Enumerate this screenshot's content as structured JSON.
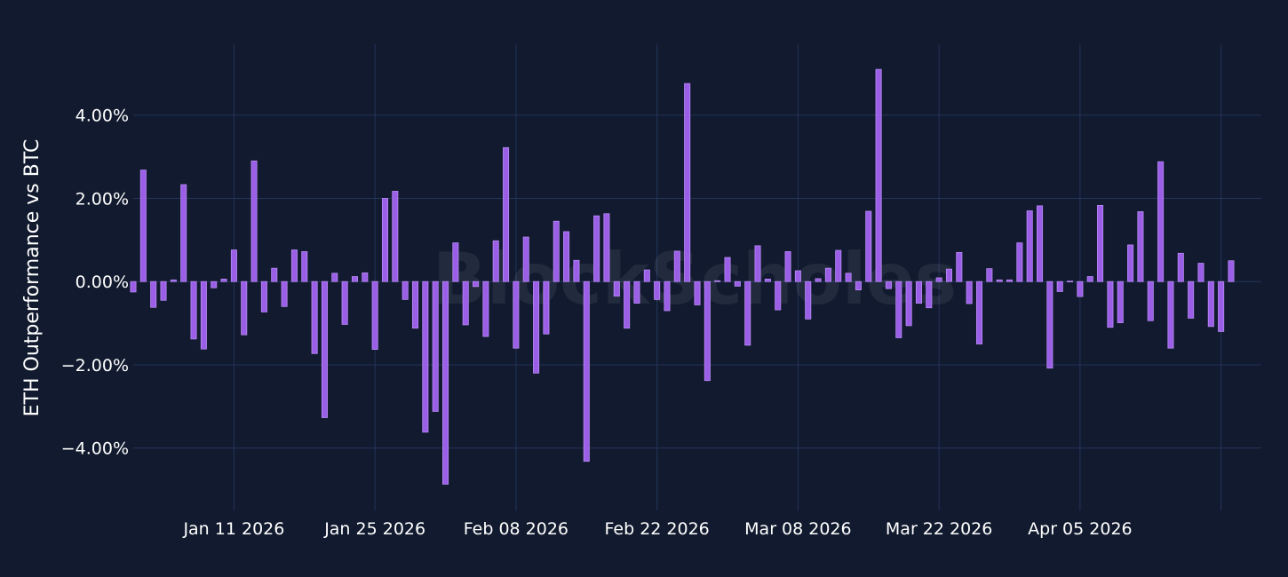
{
  "watermark": "BlockScholes",
  "chart_data": {
    "type": "bar",
    "ylabel": "ETH Outperformance vs BTC",
    "xlabel": "",
    "ylim": [
      -5.5,
      5.7
    ],
    "yticks": [
      -4,
      -2,
      0,
      2,
      4
    ],
    "ytick_labels": [
      "−4.00%",
      "−2.00%",
      "0.00%",
      "2.00%",
      "4.00%"
    ],
    "xlim": [
      "2026-01-01",
      "2026-04-23"
    ],
    "xticks": [
      "2026-01-11",
      "2026-01-25",
      "2026-02-08",
      "2026-02-22",
      "2026-03-08",
      "2026-03-22",
      "2026-04-05",
      "2026-04-19"
    ],
    "xtick_labels": [
      "Jan 11 2026",
      "Jan 25 2026",
      "Feb 08 2026",
      "Feb 22 2026",
      "Mar 08 2026",
      "Mar 22 2026",
      "Apr 05 2026",
      ""
    ],
    "grid": true,
    "colors": {
      "bar": "#9a5fe6",
      "background": "#111a2e",
      "grid": "#24345a"
    },
    "series": [
      {
        "start_date": "2026-01-01",
        "values": [
          -0.25,
          2.68,
          -0.62,
          -0.45,
          0.04,
          2.33,
          -1.38,
          -1.62,
          -0.15,
          0.06,
          0.76,
          -1.28,
          2.9,
          -0.73,
          0.32,
          -0.6,
          0.76,
          0.72,
          -1.73,
          -3.27,
          0.2,
          -1.03,
          0.12,
          0.21,
          -1.63,
          2.0,
          2.17,
          -0.43,
          -1.12,
          -3.62,
          -3.12,
          -4.87,
          0.93,
          -1.04,
          -0.12,
          -1.32,
          0.98,
          3.22,
          -1.6,
          1.07,
          -2.2,
          -1.26,
          1.45,
          1.2,
          0.51,
          -4.32,
          1.58,
          1.63,
          -0.35,
          -1.12,
          -0.52,
          0.28,
          -0.43,
          -0.7,
          0.73,
          4.76,
          -0.56,
          -2.38,
          0.02,
          0.58,
          -0.11,
          -1.53,
          0.86,
          0.06,
          -0.68,
          0.72,
          0.26,
          -0.9,
          0.07,
          0.32,
          0.75,
          0.2,
          -0.2,
          1.69,
          5.1,
          -0.17,
          -1.35,
          -1.06,
          -0.52,
          -0.63,
          0.09,
          0.3,
          0.7,
          -0.53,
          -1.5,
          0.31,
          0.04,
          0.04,
          0.93,
          1.7,
          1.82,
          -2.08,
          -0.24,
          0.01,
          -0.36,
          0.12,
          1.83,
          -1.1,
          -0.99,
          0.88,
          1.68,
          -0.94,
          2.88,
          -1.6,
          0.68,
          -0.88,
          0.44,
          -1.08,
          -1.2,
          0.5
        ]
      }
    ]
  }
}
